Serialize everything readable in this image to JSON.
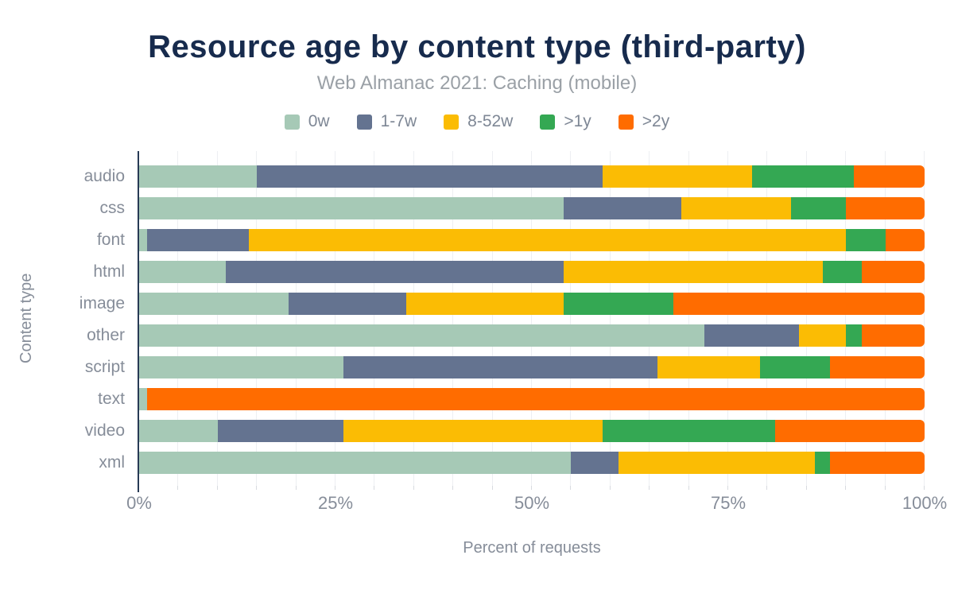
{
  "chart_data": {
    "type": "bar",
    "orientation": "horizontal-stacked",
    "title": "Resource age by content type (third-party)",
    "subtitle": "Web Almanac 2021: Caching (mobile)",
    "xlabel": "Percent of requests",
    "ylabel": "Content type",
    "xlim": [
      0,
      100
    ],
    "x_ticks": [
      "0%",
      "25%",
      "50%",
      "75%",
      "100%"
    ],
    "x_tick_values": [
      0,
      25,
      50,
      75,
      100
    ],
    "grid_step_percent": 5,
    "legend_position": "top",
    "categories": [
      "audio",
      "css",
      "font",
      "html",
      "image",
      "other",
      "script",
      "text",
      "video",
      "xml"
    ],
    "series": [
      {
        "name": "0w",
        "color": "#a6c9b6",
        "values": [
          15,
          54,
          1,
          11,
          19,
          72,
          26,
          1,
          10,
          55
        ]
      },
      {
        "name": "1-7w",
        "color": "#647390",
        "values": [
          44,
          15,
          13,
          43,
          15,
          12,
          40,
          0,
          16,
          6
        ]
      },
      {
        "name": "8-52w",
        "color": "#fbbc04",
        "values": [
          19,
          14,
          76,
          33,
          20,
          6,
          13,
          0,
          33,
          25
        ]
      },
      {
        "name": ">1y",
        "color": "#34a853",
        "values": [
          13,
          7,
          5,
          5,
          14,
          2,
          9,
          0,
          22,
          2
        ]
      },
      {
        "name": ">2y",
        "color": "#ff6c00",
        "values": [
          9,
          10,
          5,
          8,
          32,
          8,
          12,
          99,
          19,
          12
        ]
      }
    ],
    "colors": {
      "title": "#172b4d",
      "subtitle": "#9aa0a6",
      "axis_text": "#868d99",
      "axis_line": "#273a55",
      "gridline": "#edeff2",
      "background": "#ffffff"
    }
  }
}
